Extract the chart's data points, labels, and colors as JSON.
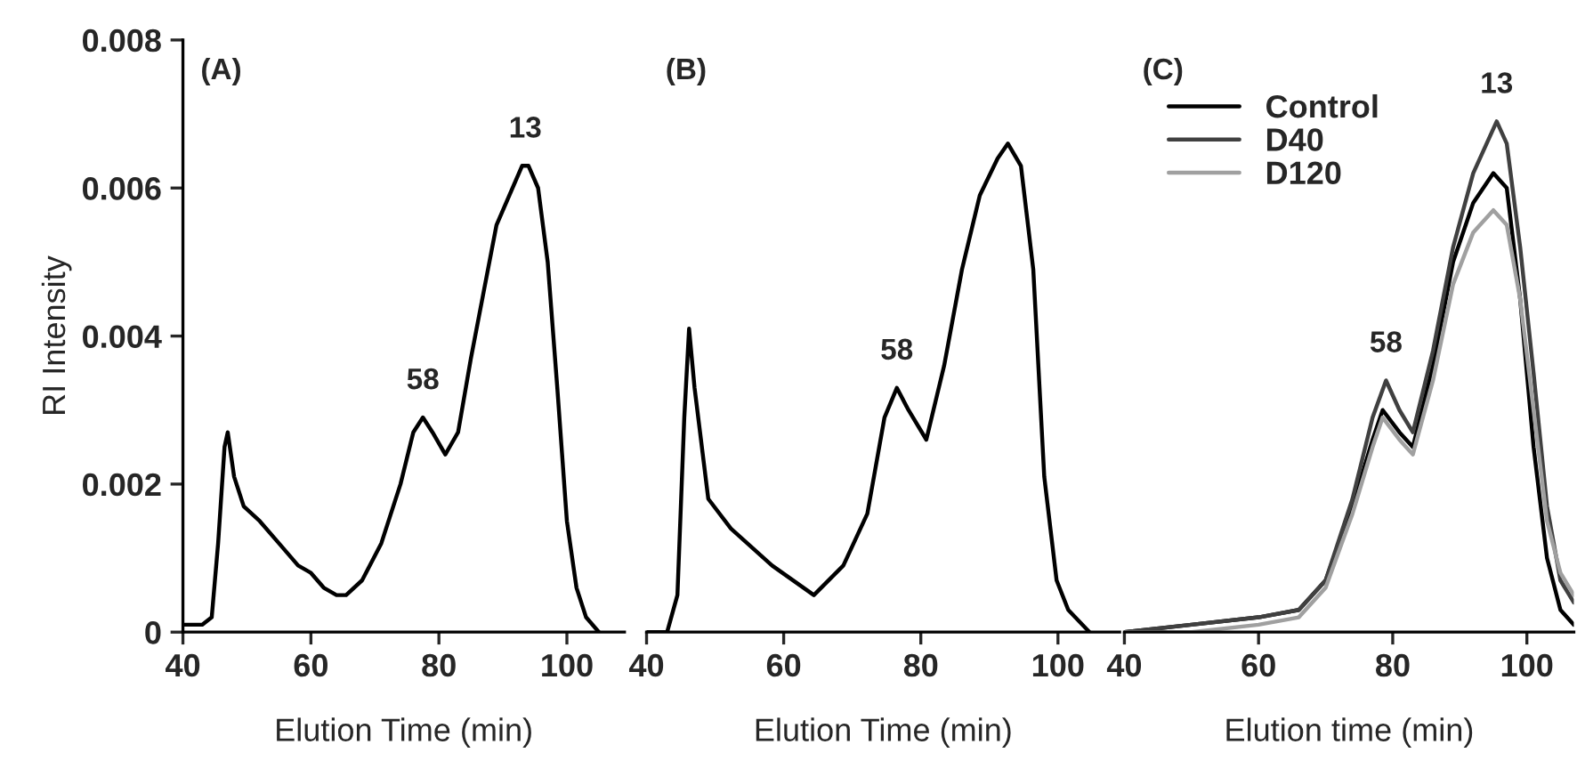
{
  "chart_data": [
    {
      "type": "line",
      "xlabel": "Elution Time (min)",
      "ylabel": "RI Intensity",
      "xlim": [
        40,
        109
      ],
      "xticks": [
        40,
        60,
        80,
        100
      ],
      "ylim": [
        0,
        0.008
      ],
      "yticks": [
        0,
        0.002,
        0.004,
        0.006,
        0.008
      ],
      "grid": false,
      "legend": false,
      "annotations": [
        "(A)",
        {
          "text": "58",
          "x": 77.5,
          "y": 0.0029
        },
        {
          "text": "13",
          "x": 93.5,
          "y": 0.0063
        }
      ],
      "series": [
        {
          "color": "#000000",
          "x": [
            40,
            43,
            44.5,
            45.5,
            46.5,
            47,
            48,
            49.5,
            52,
            55,
            58,
            60,
            62,
            64,
            65.5,
            68,
            71,
            74,
            76,
            77.5,
            79,
            81,
            83,
            85,
            87,
            89,
            91,
            93,
            94,
            95.5,
            97,
            98.5,
            100,
            101.5,
            103,
            105
          ],
          "values": [
            0.0001,
            0.0001,
            0.0002,
            0.0012,
            0.0025,
            0.0027,
            0.0021,
            0.0017,
            0.0015,
            0.0012,
            0.0009,
            0.0008,
            0.0006,
            0.0005,
            0.0005,
            0.0007,
            0.0012,
            0.002,
            0.0027,
            0.0029,
            0.0027,
            0.0024,
            0.0027,
            0.0037,
            0.0046,
            0.0055,
            0.0059,
            0.0063,
            0.0063,
            0.006,
            0.005,
            0.0033,
            0.0015,
            0.0006,
            0.0002,
            0.0
          ]
        }
      ]
    },
    {
      "type": "line",
      "xlabel": "Elution Time (min)",
      "xlim": [
        40,
        109
      ],
      "xticks": [
        40,
        60,
        80,
        100
      ],
      "ylim": [
        0,
        0.008
      ],
      "tick_labels": "x",
      "grid": false,
      "legend": false,
      "annotations": [
        "(B)",
        {
          "text": "58",
          "x": 76.5,
          "y": 0.0033
        }
      ],
      "series": [
        {
          "color": "#000000",
          "x": [
            40,
            43,
            44.5,
            45.5,
            46.2,
            47,
            49,
            52.3,
            58.3,
            64.4,
            68.7,
            72.2,
            74.7,
            76.5,
            78.2,
            80.8,
            83.4,
            86,
            88.6,
            91.2,
            92.7,
            94.6,
            96.4,
            98,
            99.8,
            101.5,
            104.6
          ],
          "values": [
            0.0,
            0.0,
            0.0005,
            0.0029,
            0.0041,
            0.0033,
            0.0018,
            0.0014,
            0.0009,
            0.0005,
            0.0009,
            0.0016,
            0.0029,
            0.0033,
            0.003,
            0.0026,
            0.0036,
            0.0049,
            0.0059,
            0.0064,
            0.0066,
            0.0063,
            0.0049,
            0.0021,
            0.0007,
            0.0003,
            0.0
          ]
        }
      ]
    },
    {
      "type": "line",
      "xlabel": "Elution time (min)",
      "xlim": [
        40,
        107
      ],
      "xticks": [
        40,
        60,
        80,
        100
      ],
      "ylim": [
        0,
        0.008
      ],
      "tick_labels": "x",
      "grid": false,
      "legend": "top left",
      "annotations": [
        "(C)",
        {
          "text": "58",
          "x": 79,
          "y": 0.0034
        },
        {
          "text": "13",
          "x": 95.5,
          "y": 0.0069
        }
      ],
      "series": [
        {
          "name": "Control",
          "color": "#000000",
          "x": [
            40,
            50,
            60,
            66,
            70,
            74,
            77,
            78.5,
            81,
            83,
            86,
            89,
            92,
            95,
            97,
            99,
            101,
            103,
            105,
            107
          ],
          "values": [
            0.0,
            0.0001,
            0.0002,
            0.0003,
            0.0007,
            0.0017,
            0.0026,
            0.003,
            0.0027,
            0.0025,
            0.0036,
            0.005,
            0.0058,
            0.0062,
            0.006,
            0.0045,
            0.0025,
            0.001,
            0.0003,
            0.0001
          ]
        },
        {
          "name": "D40",
          "color": "#404040",
          "x": [
            40,
            50,
            60,
            66,
            70,
            74,
            77,
            79,
            81,
            83,
            86,
            89,
            92,
            95.5,
            97,
            99,
            101,
            103,
            105,
            107
          ],
          "values": [
            0.0,
            0.0001,
            0.0002,
            0.0003,
            0.0007,
            0.0018,
            0.0029,
            0.0034,
            0.003,
            0.0027,
            0.0038,
            0.0052,
            0.0062,
            0.0069,
            0.0066,
            0.0052,
            0.0035,
            0.0017,
            0.0007,
            0.0004
          ]
        },
        {
          "name": "D120",
          "color": "#a0a0a0",
          "x": [
            40,
            50,
            60,
            66,
            70,
            74,
            77,
            78.5,
            81,
            83,
            86,
            89,
            92,
            95,
            97,
            99,
            101,
            103,
            105,
            107
          ],
          "values": [
            0.0,
            0.0,
            0.0001,
            0.0002,
            0.0006,
            0.0016,
            0.0025,
            0.0029,
            0.0026,
            0.0024,
            0.0034,
            0.0047,
            0.0054,
            0.0057,
            0.0055,
            0.0045,
            0.003,
            0.0015,
            0.0008,
            0.0005
          ]
        }
      ]
    }
  ]
}
